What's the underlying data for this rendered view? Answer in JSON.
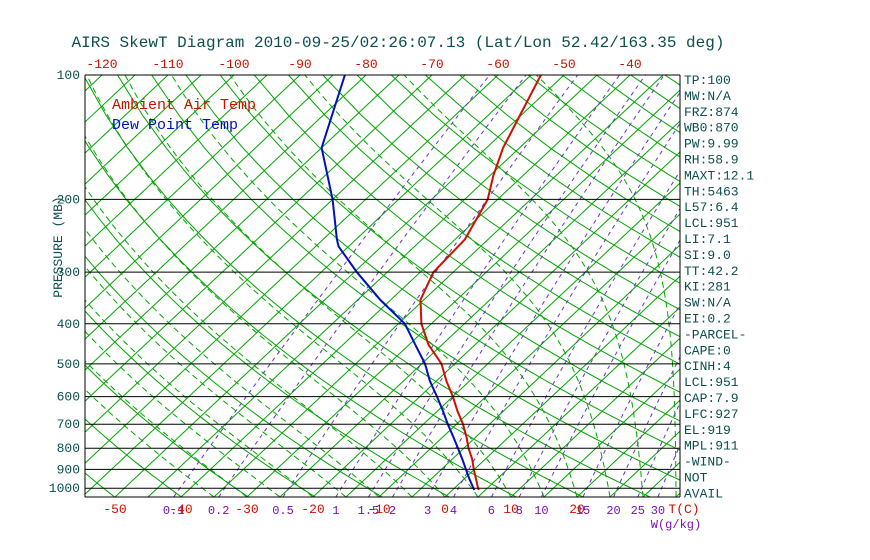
{
  "title": "AIRS SkewT Diagram 2010-09-25/02:26:07.13 (Lat/Lon 52.42/163.35 deg)",
  "legend": {
    "ambient": "Ambient Air Temp",
    "dewpoint": "Dew Point Temp"
  },
  "axes": {
    "pressure_axis_label": "PRESSURE (MB)",
    "pressure_ticks": [
      100,
      200,
      300,
      400,
      500,
      600,
      700,
      800,
      900,
      1000
    ],
    "top_temperature_ticks_C": [
      -120,
      -110,
      -100,
      -90,
      -80,
      -70,
      -60,
      -50,
      -40
    ],
    "bottom_temperature_ticks_C": [
      -50,
      -40,
      -30,
      -20,
      -10,
      0,
      10,
      20
    ],
    "temperature_unit_label": "T(C)",
    "mixing_ratio_ticks_gkg": [
      0.1,
      0.2,
      0.5,
      1,
      1.5,
      2,
      3,
      4,
      6,
      8,
      10,
      15,
      20,
      25,
      30
    ],
    "mixing_ratio_unit_label": "W(g/kg)"
  },
  "stats": [
    "TP:100",
    "MW:N/A",
    "FRZ:874",
    "WB0:870",
    "PW:9.99",
    "RH:58.9",
    "MAXT:12.1",
    "TH:5463",
    "L57:6.4",
    "LCL:951",
    "LI:7.1",
    "SI:9.0",
    "TT:42.2",
    "KI:281",
    "SW:N/A",
    "EI:0.2",
    "-PARCEL-",
    "CAPE:0",
    "CINH:4",
    "LCL:951",
    "CAP:7.9",
    "LFC:927",
    "EL:919",
    "MPL:911",
    "-WIND-",
    "NOT",
    "AVAIL"
  ],
  "colors": {
    "red": "#cc1100",
    "blue": "#0011bb",
    "green": "#00a400",
    "purple_line": "#6633cc",
    "purple_text": "#7711bb",
    "axis_text": "#0d4f4f",
    "line_black": "#000000"
  },
  "chart_data": {
    "type": "line",
    "title": "AIRS SkewT Diagram 2010-09-25/02:26:07.13 (Lat/Lon 52.42/163.35 deg)",
    "xlabel": "T(C)",
    "ylabel": "PRESSURE (MB)",
    "x_axis": "temperature_C (skewed 45 deg)",
    "y_axis": "pressure_mb (log scale, inverted)",
    "pressure_range_mb": [
      100,
      1050
    ],
    "temperature_labels_top_C": [
      -120,
      -110,
      -100,
      -90,
      -80,
      -70,
      -60,
      -50,
      -40
    ],
    "temperature_labels_bottom_C": [
      -50,
      -40,
      -30,
      -20,
      -10,
      0,
      10,
      20
    ],
    "series": [
      {
        "name": "Ambient Air Temp",
        "color": "#cc1100",
        "pressure_mb": [
          100,
          125,
          150,
          175,
          200,
          250,
          300,
          350,
          400,
          450,
          500,
          550,
          600,
          650,
          700,
          750,
          800,
          850,
          900,
          950,
          1000,
          1010
        ],
        "temperature_C": [
          -53.5,
          -50.2,
          -47.5,
          -44.5,
          -41.5,
          -38.5,
          -38.0,
          -35.5,
          -31.5,
          -27.0,
          -22.0,
          -18.5,
          -15.0,
          -12.0,
          -9.0,
          -6.5,
          -4.3,
          -2.0,
          -0.1,
          1.8,
          3.6,
          4.0
        ]
      },
      {
        "name": "Dew Point Temp",
        "color": "#0011bb",
        "pressure_mb": [
          100,
          150,
          200,
          250,
          260,
          300,
          350,
          400,
          450,
          500,
          550,
          600,
          650,
          700,
          750,
          800,
          850,
          900,
          950,
          1000,
          1010
        ],
        "temperature_C": [
          -83.2,
          -75.0,
          -65.0,
          -57.9,
          -56.5,
          -49.6,
          -41.6,
          -34.0,
          -29.0,
          -24.5,
          -21.0,
          -17.4,
          -14.2,
          -11.3,
          -8.5,
          -5.9,
          -3.5,
          -1.3,
          0.8,
          2.9,
          3.3
        ]
      }
    ],
    "background_lines": {
      "isotherms_C": {
        "start": -120,
        "end": 35,
        "step": 5
      },
      "dry_adiabats_K": {
        "start": 210,
        "end": 460,
        "step": 10
      },
      "moist_adiabats_start_C": {
        "start": -35,
        "end": 40,
        "step": 5
      },
      "mixing_ratio_gkg": [
        0.1,
        0.2,
        0.5,
        1,
        1.5,
        2,
        3,
        4,
        6,
        8,
        10,
        15,
        20,
        25,
        30
      ]
    },
    "legend_position": "top-left-inside",
    "grid": "pressure lines every 100 mb, black"
  }
}
